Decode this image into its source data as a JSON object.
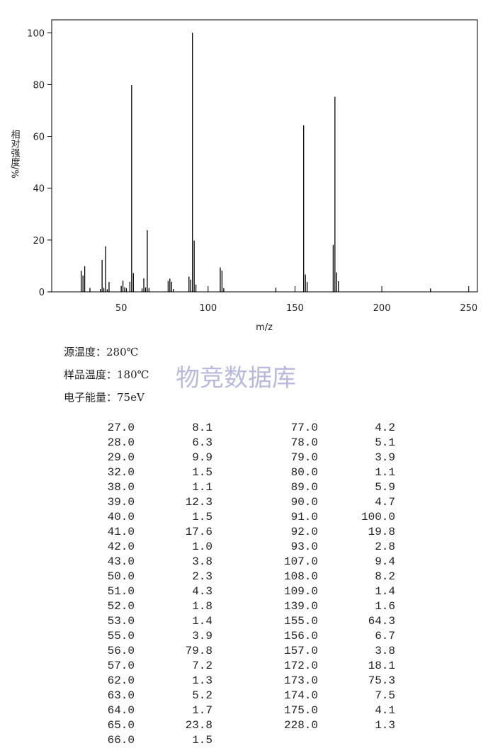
{
  "chart_data": {
    "type": "stick",
    "xlabel": "m/z",
    "ylabel": "相对强度/%",
    "xlim": [
      10,
      255
    ],
    "ylim": [
      0,
      105
    ],
    "xticks": [
      50,
      100,
      150,
      200,
      250
    ],
    "yticks": [
      0,
      20,
      40,
      60,
      80,
      100
    ],
    "color": "#000000",
    "x": [
      27,
      28,
      29,
      32,
      38,
      39,
      40,
      41,
      42,
      43,
      50,
      51,
      52,
      53,
      55,
      56,
      57,
      62,
      63,
      64,
      65,
      66,
      77,
      78,
      79,
      80,
      89,
      90,
      91,
      92,
      93,
      107,
      108,
      109,
      139,
      155,
      156,
      157,
      172,
      173,
      174,
      175,
      228
    ],
    "values": [
      8.1,
      6.3,
      9.9,
      1.5,
      1.1,
      12.3,
      1.5,
      17.6,
      1.0,
      3.8,
      2.3,
      4.3,
      1.8,
      1.4,
      3.9,
      79.8,
      7.2,
      1.3,
      5.2,
      1.7,
      23.8,
      1.5,
      4.2,
      5.1,
      3.9,
      1.1,
      5.9,
      4.7,
      100.0,
      19.8,
      2.8,
      9.4,
      8.2,
      1.4,
      1.6,
      64.3,
      6.7,
      3.8,
      18.1,
      75.3,
      7.5,
      4.1,
      1.3
    ]
  },
  "conditions": [
    "源温度：280℃",
    "样品温度：180℃",
    "电子能量：75eV"
  ],
  "watermark": "物竞数据库",
  "table": {
    "columns": [
      [
        [
          "27.0",
          "8.1"
        ],
        [
          "28.0",
          "6.3"
        ],
        [
          "29.0",
          "9.9"
        ],
        [
          "32.0",
          "1.5"
        ],
        [
          "38.0",
          "1.1"
        ],
        [
          "39.0",
          "12.3"
        ],
        [
          "40.0",
          "1.5"
        ],
        [
          "41.0",
          "17.6"
        ],
        [
          "42.0",
          "1.0"
        ],
        [
          "43.0",
          "3.8"
        ],
        [
          "50.0",
          "2.3"
        ],
        [
          "51.0",
          "4.3"
        ],
        [
          "52.0",
          "1.8"
        ],
        [
          "53.0",
          "1.4"
        ],
        [
          "55.0",
          "3.9"
        ],
        [
          "56.0",
          "79.8"
        ],
        [
          "57.0",
          "7.2"
        ],
        [
          "62.0",
          "1.3"
        ],
        [
          "63.0",
          "5.2"
        ],
        [
          "64.0",
          "1.7"
        ],
        [
          "65.0",
          "23.8"
        ],
        [
          "66.0",
          "1.5"
        ]
      ],
      [
        [
          "77.0",
          "4.2"
        ],
        [
          "78.0",
          "5.1"
        ],
        [
          "79.0",
          "3.9"
        ],
        [
          "80.0",
          "1.1"
        ],
        [
          "89.0",
          "5.9"
        ],
        [
          "90.0",
          "4.7"
        ],
        [
          "91.0",
          "100.0"
        ],
        [
          "92.0",
          "19.8"
        ],
        [
          "93.0",
          "2.8"
        ],
        [
          "107.0",
          "9.4"
        ],
        [
          "108.0",
          "8.2"
        ],
        [
          "109.0",
          "1.4"
        ],
        [
          "139.0",
          "1.6"
        ],
        [
          "155.0",
          "64.3"
        ],
        [
          "156.0",
          "6.7"
        ],
        [
          "157.0",
          "3.8"
        ],
        [
          "172.0",
          "18.1"
        ],
        [
          "173.0",
          "75.3"
        ],
        [
          "174.0",
          "7.5"
        ],
        [
          "175.0",
          "4.1"
        ],
        [
          "228.0",
          "1.3"
        ]
      ]
    ]
  }
}
